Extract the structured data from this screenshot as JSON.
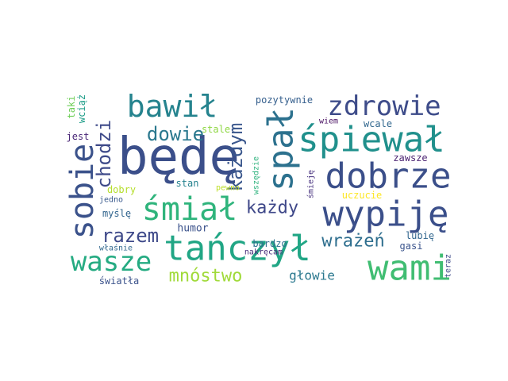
{
  "wordcloud": {
    "words": [
      {
        "text": "będę",
        "color": "#3b4f8a"
      },
      {
        "text": "śpiewał",
        "color": "#20908c"
      },
      {
        "text": "dobrze",
        "color": "#3b4f8a"
      },
      {
        "text": "wypiję",
        "color": "#3b4f8a"
      },
      {
        "text": "tańczył",
        "color": "#21a685"
      },
      {
        "text": "wami",
        "color": "#40bd72"
      },
      {
        "text": "bawił",
        "color": "#25838e"
      },
      {
        "text": "zdrowie",
        "color": "#3e4c8a"
      },
      {
        "text": "śmiał",
        "color": "#2fb47c"
      },
      {
        "text": "sobie",
        "color": "#3b528b"
      },
      {
        "text": "spał",
        "color": "#2c718e"
      },
      {
        "text": "wasze",
        "color": "#25ab82"
      },
      {
        "text": "chodzi",
        "color": "#3e4a89"
      },
      {
        "text": "każdym",
        "color": "#39568c"
      },
      {
        "text": "każdy",
        "color": "#3f4889"
      },
      {
        "text": "razem",
        "color": "#3e4989"
      },
      {
        "text": "dowie",
        "color": "#2a788e"
      },
      {
        "text": "wrażeń",
        "color": "#2e6e8e"
      },
      {
        "text": "mnóstwo",
        "color": "#a0da39"
      },
      {
        "text": "głowie",
        "color": "#2a788e"
      },
      {
        "text": "humor",
        "color": "#3b528b"
      },
      {
        "text": "pozytywnie",
        "color": "#355f8d"
      },
      {
        "text": "zawsze",
        "color": "#481f70"
      },
      {
        "text": "bardzo",
        "color": "#2d708e"
      },
      {
        "text": "nakręcam",
        "color": "#472c7a"
      },
      {
        "text": "lubię",
        "color": "#31668e"
      },
      {
        "text": "gasi",
        "color": "#3a548c"
      },
      {
        "text": "teraz",
        "color": "#3e4989"
      },
      {
        "text": "uczucie",
        "color": "#fde725"
      },
      {
        "text": "śmieję",
        "color": "#46307e"
      },
      {
        "text": "wcale",
        "color": "#31678e"
      },
      {
        "text": "wiem",
        "color": "#470e61"
      },
      {
        "text": "stale",
        "color": "#8fd744"
      },
      {
        "text": "stan",
        "color": "#26828e"
      },
      {
        "text": "pewno",
        "color": "#bddf26"
      },
      {
        "text": "wszędzie",
        "color": "#2db27d"
      },
      {
        "text": "dobry",
        "color": "#b5de2b"
      },
      {
        "text": "jedno",
        "color": "#38588c"
      },
      {
        "text": "myślę",
        "color": "#32658e"
      },
      {
        "text": "właśnie",
        "color": "#31688e"
      },
      {
        "text": "światła",
        "color": "#3b528b"
      },
      {
        "text": "taki",
        "color": "#6ece58"
      },
      {
        "text": "wciąż",
        "color": "#1f9e89"
      },
      {
        "text": "jest",
        "color": "#482576"
      }
    ]
  }
}
